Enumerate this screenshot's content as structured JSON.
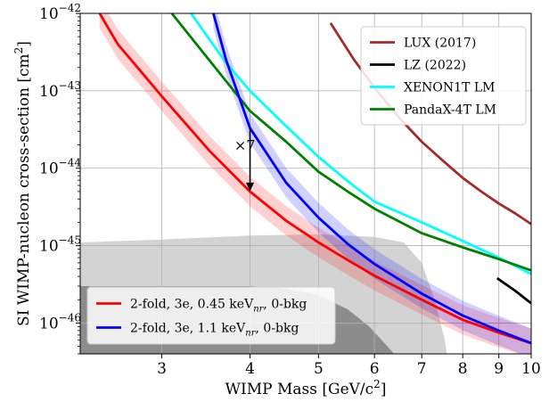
{
  "chart_data": {
    "type": "line",
    "title": "",
    "xlabel": "WIMP Mass [GeV/c",
    "xlabel_sup": "2",
    "xlabel_end": "]",
    "ylabel": "SI WIMP-nucleon cross-section [cm",
    "ylabel_sup": "2",
    "ylabel_end": "]",
    "xscale": "log",
    "yscale": "log",
    "xlim": [
      2.3,
      10
    ],
    "ylim": [
      4e-47,
      1e-42
    ],
    "grid": true,
    "xticks": [
      {
        "value": 3,
        "label": "3"
      },
      {
        "value": 4,
        "label": "4"
      },
      {
        "value": 5,
        "label": "5"
      },
      {
        "value": 6,
        "label": "6"
      },
      {
        "value": 7,
        "label": "7"
      },
      {
        "value": 8,
        "label": "8"
      },
      {
        "value": 9,
        "label": "9"
      },
      {
        "value": 10,
        "label": "10"
      }
    ],
    "yticks": [
      {
        "value": 1e-42,
        "base": "10",
        "exp": "−42"
      },
      {
        "value": 1e-43,
        "base": "10",
        "exp": "−43"
      },
      {
        "value": 1e-44,
        "base": "10",
        "exp": "−44"
      },
      {
        "value": 1e-45,
        "base": "10",
        "exp": "−45"
      },
      {
        "value": 1e-46,
        "base": "10",
        "exp": "−46"
      }
    ],
    "series": [
      {
        "name": "LUX (2017)",
        "color": "#a52a2a",
        "legend": "upper",
        "x": [
          5.2,
          5.6,
          6,
          6.5,
          7,
          7.5,
          8,
          8.5,
          9,
          9.5,
          10
        ],
        "y": [
          7.5e-43,
          2.6e-43,
          1.1e-43,
          4.5e-44,
          2.2e-44,
          1.25e-44,
          7.5e-45,
          5e-45,
          3.5e-45,
          2.6e-45,
          1.9e-45
        ]
      },
      {
        "name": "LZ (2022)",
        "color": "#000000",
        "legend": "upper",
        "x": [
          8.95,
          9.5,
          10
        ],
        "y": [
          3.8e-46,
          2.6e-46,
          1.8e-46
        ]
      },
      {
        "name": "XENON1T LM",
        "color": "#00ffff",
        "legend": "upper",
        "x": [
          3.3,
          3.7,
          4,
          4.5,
          5,
          5.5,
          6,
          7,
          8,
          9,
          10
        ],
        "y": [
          1e-42,
          2.3e-43,
          1e-43,
          3.5e-44,
          1.4e-44,
          6.8e-45,
          3.7e-45,
          2e-45,
          1.15e-45,
          7e-46,
          4.3e-46
        ]
      },
      {
        "name": "PandaX-4T LM",
        "color": "#008000",
        "legend": "upper",
        "x": [
          3.1,
          3.5,
          4,
          4.5,
          5,
          5.5,
          6,
          7,
          8,
          9,
          10
        ],
        "y": [
          1e-42,
          2.5e-43,
          5.5e-44,
          2.2e-44,
          9e-45,
          5e-45,
          3e-45,
          1.45e-45,
          9.5e-46,
          6.7e-46,
          4.8e-46
        ]
      },
      {
        "name": "2-fold, 3e, 0.45 keV",
        "sub": "nr",
        "tail": ", 0-bkg",
        "color": "#ff0000",
        "legend": "lower",
        "band": true,
        "x": [
          2.45,
          2.6,
          2.8,
          3,
          3.5,
          4,
          4.5,
          5,
          5.5,
          6,
          7,
          8,
          9,
          10
        ],
        "y": [
          1e-42,
          4e-43,
          1.8e-43,
          8.5e-44,
          1.7e-44,
          5e-45,
          2.1e-45,
          1.1e-45,
          6.5e-46,
          4.1e-46,
          2e-46,
          1.1e-46,
          7.5e-47,
          5.5e-47
        ]
      },
      {
        "name": "2-fold, 3e, 1.1 keV",
        "sub": "nr",
        "tail": ", 0-bkg",
        "color": "#0000ff",
        "legend": "lower",
        "band": true,
        "x": [
          3.55,
          3.7,
          4,
          4.5,
          5,
          5.5,
          6,
          7,
          8,
          9,
          10
        ],
        "y": [
          1e-42,
          2.5e-43,
          3.3e-44,
          6.5e-45,
          2.3e-45,
          1.05e-45,
          5.8e-46,
          2.4e-46,
          1.25e-46,
          8e-47,
          5.5e-47
        ]
      }
    ],
    "excluded_regions": [
      {
        "color": "#d3d3d3",
        "x": [
          2.3,
          3,
          4,
          5,
          6,
          6.6,
          7,
          7.3,
          7.55,
          7.6,
          7.6,
          2.3
        ],
        "y": [
          1.1e-45,
          1.2e-45,
          1.35e-45,
          1.4e-45,
          1.3e-45,
          1.1e-45,
          6e-46,
          2e-46,
          6e-47,
          4e-47,
          4e-47,
          4e-47
        ]
      },
      {
        "color": "#8c8c8c",
        "x": [
          2.3,
          3,
          4,
          4.5,
          5,
          5.5,
          5.9,
          6.2,
          6.4,
          6.4,
          2.3
        ],
        "y": [
          3e-46,
          3e-46,
          3e-46,
          2.8e-46,
          2.3e-46,
          1.5e-46,
          9e-47,
          5.5e-47,
          4e-47,
          4e-47,
          4e-47
        ]
      }
    ],
    "annotations": [
      {
        "text": "×7",
        "arrow_x": 4,
        "arrow_from": 3.3e-44,
        "arrow_to": 5e-45,
        "text_x": 3.8,
        "text_y": 1.7e-44
      }
    ],
    "legends": [
      "upper-right",
      "lower-left"
    ]
  }
}
